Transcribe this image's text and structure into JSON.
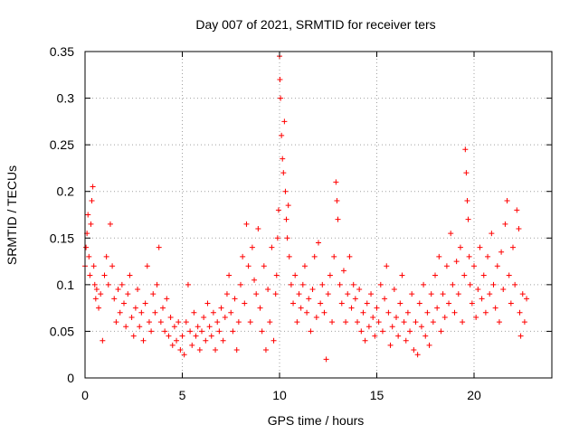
{
  "chart_data": {
    "type": "scatter",
    "title": "Day 007 of 2021, SRMTID for receiver ters",
    "xlabel": "GPS time / hours",
    "ylabel": "SRMTID / TECUs",
    "xlim": [
      0,
      24
    ],
    "ylim": [
      0,
      0.35
    ],
    "x_ticks": [
      0,
      5,
      10,
      15,
      20
    ],
    "x_tick_labels": [
      "0",
      "5",
      "10",
      "15",
      "20"
    ],
    "y_ticks": [
      0,
      0.05,
      0.1,
      0.15,
      0.2,
      0.25,
      0.3,
      0.35
    ],
    "y_tick_labels": [
      "0",
      "0.05",
      "0.1",
      "0.15",
      "0.2",
      "0.25",
      "0.3",
      "0.35"
    ],
    "grid": true,
    "marker": "+",
    "color": "#ff0000",
    "series": [
      {
        "name": "SRMTID",
        "points": [
          [
            0.0,
            0.12
          ],
          [
            0.05,
            0.14
          ],
          [
            0.1,
            0.155
          ],
          [
            0.15,
            0.175
          ],
          [
            0.2,
            0.13
          ],
          [
            0.25,
            0.11
          ],
          [
            0.3,
            0.165
          ],
          [
            0.35,
            0.19
          ],
          [
            0.4,
            0.205
          ],
          [
            0.45,
            0.12
          ],
          [
            0.5,
            0.1
          ],
          [
            0.55,
            0.085
          ],
          [
            0.6,
            0.095
          ],
          [
            0.7,
            0.075
          ],
          [
            0.8,
            0.09
          ],
          [
            0.9,
            0.04
          ],
          [
            1.0,
            0.11
          ],
          [
            1.1,
            0.13
          ],
          [
            1.2,
            0.1
          ],
          [
            1.3,
            0.165
          ],
          [
            1.4,
            0.12
          ],
          [
            1.5,
            0.085
          ],
          [
            1.6,
            0.06
          ],
          [
            1.7,
            0.095
          ],
          [
            1.8,
            0.07
          ],
          [
            1.9,
            0.1
          ],
          [
            2.0,
            0.08
          ],
          [
            2.1,
            0.055
          ],
          [
            2.2,
            0.09
          ],
          [
            2.3,
            0.11
          ],
          [
            2.4,
            0.065
          ],
          [
            2.5,
            0.045
          ],
          [
            2.6,
            0.075
          ],
          [
            2.7,
            0.095
          ],
          [
            2.8,
            0.055
          ],
          [
            2.9,
            0.07
          ],
          [
            3.0,
            0.04
          ],
          [
            3.1,
            0.08
          ],
          [
            3.2,
            0.12
          ],
          [
            3.3,
            0.06
          ],
          [
            3.4,
            0.05
          ],
          [
            3.5,
            0.09
          ],
          [
            3.6,
            0.07
          ],
          [
            3.7,
            0.1
          ],
          [
            3.8,
            0.14
          ],
          [
            3.9,
            0.06
          ],
          [
            4.0,
            0.075
          ],
          [
            4.1,
            0.05
          ],
          [
            4.2,
            0.085
          ],
          [
            4.3,
            0.045
          ],
          [
            4.4,
            0.065
          ],
          [
            4.5,
            0.035
          ],
          [
            4.6,
            0.055
          ],
          [
            4.7,
            0.04
          ],
          [
            4.8,
            0.06
          ],
          [
            4.9,
            0.03
          ],
          [
            5.0,
            0.045
          ],
          [
            5.1,
            0.025
          ],
          [
            5.2,
            0.06
          ],
          [
            5.3,
            0.1
          ],
          [
            5.4,
            0.05
          ],
          [
            5.5,
            0.035
          ],
          [
            5.6,
            0.07
          ],
          [
            5.7,
            0.045
          ],
          [
            5.8,
            0.055
          ],
          [
            5.9,
            0.03
          ],
          [
            6.0,
            0.05
          ],
          [
            6.1,
            0.065
          ],
          [
            6.2,
            0.04
          ],
          [
            6.3,
            0.08
          ],
          [
            6.4,
            0.055
          ],
          [
            6.5,
            0.045
          ],
          [
            6.6,
            0.07
          ],
          [
            6.7,
            0.03
          ],
          [
            6.8,
            0.06
          ],
          [
            6.9,
            0.05
          ],
          [
            7.0,
            0.075
          ],
          [
            7.1,
            0.04
          ],
          [
            7.2,
            0.065
          ],
          [
            7.3,
            0.09
          ],
          [
            7.4,
            0.11
          ],
          [
            7.5,
            0.07
          ],
          [
            7.6,
            0.05
          ],
          [
            7.7,
            0.085
          ],
          [
            7.8,
            0.03
          ],
          [
            7.9,
            0.06
          ],
          [
            8.0,
            0.1
          ],
          [
            8.1,
            0.13
          ],
          [
            8.2,
            0.08
          ],
          [
            8.3,
            0.165
          ],
          [
            8.4,
            0.12
          ],
          [
            8.5,
            0.06
          ],
          [
            8.6,
            0.14
          ],
          [
            8.7,
            0.105
          ],
          [
            8.8,
            0.09
          ],
          [
            8.9,
            0.16
          ],
          [
            9.0,
            0.075
          ],
          [
            9.1,
            0.05
          ],
          [
            9.2,
            0.12
          ],
          [
            9.3,
            0.03
          ],
          [
            9.4,
            0.095
          ],
          [
            9.5,
            0.06
          ],
          [
            9.6,
            0.14
          ],
          [
            9.7,
            0.04
          ],
          [
            9.8,
            0.09
          ],
          [
            9.85,
            0.11
          ],
          [
            9.9,
            0.15
          ],
          [
            9.95,
            0.18
          ],
          [
            10.0,
            0.345
          ],
          [
            10.02,
            0.32
          ],
          [
            10.05,
            0.3
          ],
          [
            10.1,
            0.26
          ],
          [
            10.15,
            0.235
          ],
          [
            10.2,
            0.22
          ],
          [
            10.25,
            0.275
          ],
          [
            10.3,
            0.2
          ],
          [
            10.35,
            0.17
          ],
          [
            10.4,
            0.15
          ],
          [
            10.45,
            0.185
          ],
          [
            10.5,
            0.13
          ],
          [
            10.6,
            0.1
          ],
          [
            10.7,
            0.08
          ],
          [
            10.8,
            0.11
          ],
          [
            10.9,
            0.06
          ],
          [
            11.0,
            0.09
          ],
          [
            11.1,
            0.075
          ],
          [
            11.2,
            0.1
          ],
          [
            11.3,
            0.12
          ],
          [
            11.4,
            0.07
          ],
          [
            11.5,
            0.085
          ],
          [
            11.6,
            0.05
          ],
          [
            11.7,
            0.095
          ],
          [
            11.8,
            0.13
          ],
          [
            11.9,
            0.065
          ],
          [
            12.0,
            0.145
          ],
          [
            12.1,
            0.08
          ],
          [
            12.2,
            0.1
          ],
          [
            12.3,
            0.07
          ],
          [
            12.4,
            0.02
          ],
          [
            12.5,
            0.09
          ],
          [
            12.6,
            0.11
          ],
          [
            12.7,
            0.06
          ],
          [
            12.8,
            0.13
          ],
          [
            12.9,
            0.21
          ],
          [
            12.95,
            0.19
          ],
          [
            13.0,
            0.17
          ],
          [
            13.1,
            0.1
          ],
          [
            13.2,
            0.08
          ],
          [
            13.3,
            0.115
          ],
          [
            13.4,
            0.06
          ],
          [
            13.5,
            0.09
          ],
          [
            13.6,
            0.13
          ],
          [
            13.7,
            0.075
          ],
          [
            13.8,
            0.1
          ],
          [
            13.9,
            0.085
          ],
          [
            14.0,
            0.06
          ],
          [
            14.1,
            0.095
          ],
          [
            14.2,
            0.05
          ],
          [
            14.3,
            0.07
          ],
          [
            14.4,
            0.04
          ],
          [
            14.5,
            0.08
          ],
          [
            14.6,
            0.055
          ],
          [
            14.7,
            0.09
          ],
          [
            14.8,
            0.065
          ],
          [
            14.9,
            0.045
          ],
          [
            15.0,
            0.075
          ],
          [
            15.1,
            0.06
          ],
          [
            15.2,
            0.1
          ],
          [
            15.3,
            0.05
          ],
          [
            15.4,
            0.085
          ],
          [
            15.5,
            0.12
          ],
          [
            15.6,
            0.07
          ],
          [
            15.7,
            0.035
          ],
          [
            15.8,
            0.055
          ],
          [
            15.9,
            0.095
          ],
          [
            16.0,
            0.065
          ],
          [
            16.1,
            0.045
          ],
          [
            16.2,
            0.08
          ],
          [
            16.3,
            0.11
          ],
          [
            16.4,
            0.06
          ],
          [
            16.5,
            0.04
          ],
          [
            16.6,
            0.07
          ],
          [
            16.7,
            0.05
          ],
          [
            16.8,
            0.09
          ],
          [
            16.9,
            0.03
          ],
          [
            17.0,
            0.06
          ],
          [
            17.1,
            0.025
          ],
          [
            17.2,
            0.08
          ],
          [
            17.3,
            0.055
          ],
          [
            17.4,
            0.1
          ],
          [
            17.5,
            0.045
          ],
          [
            17.6,
            0.07
          ],
          [
            17.7,
            0.035
          ],
          [
            17.8,
            0.09
          ],
          [
            17.9,
            0.06
          ],
          [
            18.0,
            0.11
          ],
          [
            18.1,
            0.075
          ],
          [
            18.2,
            0.13
          ],
          [
            18.3,
            0.05
          ],
          [
            18.4,
            0.09
          ],
          [
            18.5,
            0.065
          ],
          [
            18.6,
            0.12
          ],
          [
            18.7,
            0.08
          ],
          [
            18.8,
            0.155
          ],
          [
            18.9,
            0.1
          ],
          [
            19.0,
            0.07
          ],
          [
            19.1,
            0.125
          ],
          [
            19.2,
            0.09
          ],
          [
            19.3,
            0.14
          ],
          [
            19.4,
            0.06
          ],
          [
            19.5,
            0.11
          ],
          [
            19.55,
            0.245
          ],
          [
            19.6,
            0.22
          ],
          [
            19.65,
            0.19
          ],
          [
            19.7,
            0.17
          ],
          [
            19.75,
            0.13
          ],
          [
            19.8,
            0.1
          ],
          [
            19.9,
            0.08
          ],
          [
            20.0,
            0.12
          ],
          [
            20.1,
            0.065
          ],
          [
            20.2,
            0.095
          ],
          [
            20.3,
            0.14
          ],
          [
            20.4,
            0.085
          ],
          [
            20.5,
            0.11
          ],
          [
            20.6,
            0.07
          ],
          [
            20.7,
            0.13
          ],
          [
            20.8,
            0.09
          ],
          [
            20.9,
            0.155
          ],
          [
            21.0,
            0.1
          ],
          [
            21.1,
            0.075
          ],
          [
            21.2,
            0.12
          ],
          [
            21.3,
            0.06
          ],
          [
            21.4,
            0.135
          ],
          [
            21.5,
            0.095
          ],
          [
            21.6,
            0.165
          ],
          [
            21.7,
            0.19
          ],
          [
            21.8,
            0.11
          ],
          [
            21.9,
            0.08
          ],
          [
            22.0,
            0.14
          ],
          [
            22.1,
            0.1
          ],
          [
            22.2,
            0.18
          ],
          [
            22.3,
            0.16
          ],
          [
            22.35,
            0.07
          ],
          [
            22.4,
            0.045
          ],
          [
            22.5,
            0.09
          ],
          [
            22.6,
            0.06
          ],
          [
            22.7,
            0.085
          ]
        ]
      }
    ]
  }
}
